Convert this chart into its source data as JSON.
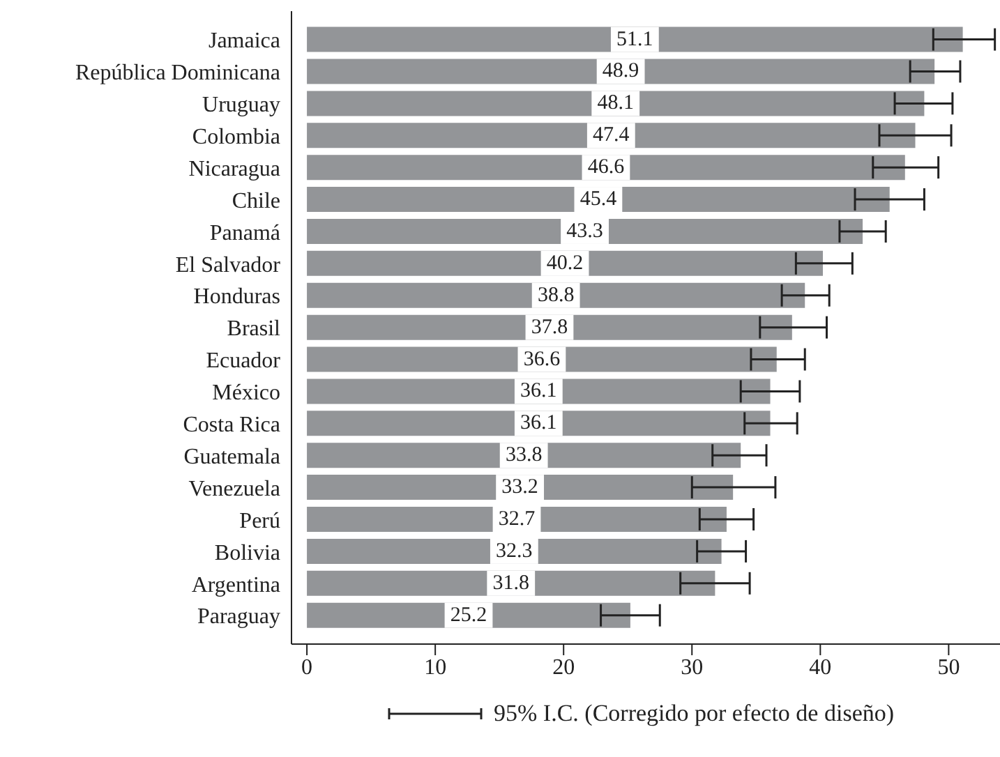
{
  "chart_data": {
    "type": "bar",
    "orientation": "horizontal",
    "categories": [
      "Jamaica",
      "República Dominicana",
      "Uruguay",
      "Colombia",
      "Nicaragua",
      "Chile",
      "Panamá",
      "El Salvador",
      "Honduras",
      "Brasil",
      "Ecuador",
      "México",
      "Costa Rica",
      "Guatemala",
      "Venezuela",
      "Perú",
      "Bolivia",
      "Argentina",
      "Paraguay"
    ],
    "values": [
      51.1,
      48.9,
      48.1,
      47.4,
      46.6,
      45.4,
      43.3,
      40.2,
      38.8,
      37.8,
      36.6,
      36.1,
      36.1,
      33.8,
      33.2,
      32.7,
      32.3,
      31.8,
      25.2
    ],
    "errors": [
      [
        48.8,
        53.6
      ],
      [
        47.0,
        50.9
      ],
      [
        45.8,
        50.3
      ],
      [
        44.6,
        50.2
      ],
      [
        44.1,
        49.2
      ],
      [
        42.7,
        48.1
      ],
      [
        41.5,
        45.1
      ],
      [
        38.1,
        42.5
      ],
      [
        37.0,
        40.7
      ],
      [
        35.3,
        40.5
      ],
      [
        34.6,
        38.8
      ],
      [
        33.8,
        38.4
      ],
      [
        34.1,
        38.2
      ],
      [
        31.6,
        35.8
      ],
      [
        30.0,
        36.5
      ],
      [
        30.6,
        34.8
      ],
      [
        30.4,
        34.2
      ],
      [
        29.1,
        34.5
      ],
      [
        22.9,
        27.5
      ]
    ],
    "color": "#939598",
    "data_labels": true,
    "xlim": [
      -1.2,
      54
    ],
    "xticks": [
      0,
      10,
      20,
      30,
      40,
      50
    ],
    "grid": false,
    "annotations": [
      "95% I.C. (Corregido por efecto de diseño)"
    ]
  }
}
